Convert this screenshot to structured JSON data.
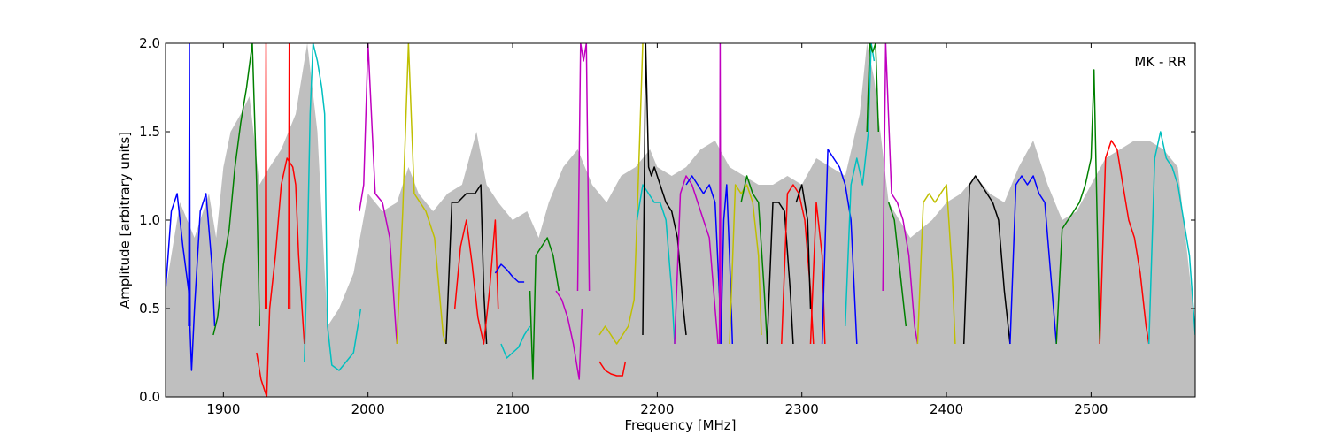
{
  "chart_data": {
    "type": "line",
    "title": "",
    "annotation": "MK - RR",
    "xlabel": "Frequency [MHz]",
    "ylabel": "Amplitude [arbitrary units]",
    "xlim": [
      1860,
      2572
    ],
    "ylim": [
      0.0,
      2.0
    ],
    "xticks": [
      1900,
      2000,
      2100,
      2200,
      2300,
      2400,
      2500
    ],
    "xtick_labels": [
      "1900",
      "2000",
      "2100",
      "2200",
      "2300",
      "2400",
      "2500"
    ],
    "yticks": [
      0.0,
      0.5,
      1.0,
      1.5,
      2.0
    ],
    "ytick_labels": [
      "0.0",
      "0.5",
      "1.0",
      "1.5",
      "2.0"
    ],
    "grid": false,
    "background": {
      "color": "#bfbfbf",
      "x": [
        1860,
        1870,
        1880,
        1890,
        1895,
        1900,
        1905,
        1912,
        1918,
        1925,
        1932,
        1940,
        1950,
        1958,
        1965,
        1972,
        1980,
        1990,
        2000,
        2010,
        2020,
        2028,
        2035,
        2045,
        2055,
        2065,
        2075,
        2082,
        2090,
        2100,
        2110,
        2118,
        2125,
        2135,
        2145,
        2155,
        2165,
        2175,
        2185,
        2195,
        2200,
        2210,
        2220,
        2230,
        2240,
        2250,
        2260,
        2270,
        2280,
        2290,
        2300,
        2310,
        2320,
        2330,
        2340,
        2345,
        2350,
        2360,
        2375,
        2390,
        2400,
        2410,
        2420,
        2430,
        2440,
        2450,
        2460,
        2470,
        2480,
        2490,
        2500,
        2510,
        2520,
        2530,
        2540,
        2550,
        2560,
        2572
      ],
      "y": [
        0.6,
        1.1,
        0.9,
        1.15,
        0.9,
        1.3,
        1.5,
        1.6,
        1.7,
        1.2,
        1.3,
        1.4,
        1.6,
        2.0,
        1.5,
        0.4,
        0.5,
        0.7,
        1.15,
        1.05,
        1.1,
        1.3,
        1.15,
        1.05,
        1.15,
        1.2,
        1.5,
        1.2,
        1.1,
        1.0,
        1.05,
        0.9,
        1.1,
        1.3,
        1.4,
        1.2,
        1.1,
        1.25,
        1.3,
        1.4,
        1.3,
        1.25,
        1.3,
        1.4,
        1.45,
        1.3,
        1.25,
        1.2,
        1.2,
        1.25,
        1.2,
        1.35,
        1.3,
        1.25,
        1.6,
        2.0,
        1.8,
        1.1,
        0.9,
        1.0,
        1.1,
        1.15,
        1.25,
        1.15,
        1.1,
        1.3,
        1.45,
        1.2,
        1.0,
        1.05,
        1.2,
        1.35,
        1.4,
        1.45,
        1.45,
        1.4,
        1.3,
        0.4
      ]
    },
    "series": [
      {
        "color": "#0000ff",
        "x": [
          1860,
          1864,
          1868,
          1872,
          1876,
          1878,
          1880,
          1884,
          1888,
          1892,
          1894
        ],
        "y": [
          0.6,
          1.05,
          1.15,
          0.85,
          0.6,
          0.15,
          0.5,
          1.05,
          1.15,
          0.75,
          0.4
        ]
      },
      {
        "color": "#0000ff",
        "x": [
          1876,
          1876.5,
          1877
        ],
        "y": [
          0.4,
          2.0,
          0.4
        ]
      },
      {
        "color": "#008000",
        "x": [
          1893,
          1896,
          1900,
          1904,
          1908,
          1912,
          1916,
          1920,
          1923,
          1925
        ],
        "y": [
          0.35,
          0.45,
          0.75,
          0.95,
          1.3,
          1.55,
          1.75,
          2.0,
          1.2,
          0.4
        ]
      },
      {
        "color": "#ff0000",
        "x": [
          1923,
          1926,
          1930,
          1932,
          1936,
          1940,
          1944,
          1948,
          1950,
          1952,
          1956
        ],
        "y": [
          0.25,
          0.1,
          0.0,
          0.5,
          0.8,
          1.2,
          1.35,
          1.3,
          1.2,
          0.8,
          0.3
        ]
      },
      {
        "color": "#ff0000",
        "x": [
          1929,
          1929.5,
          1930
        ],
        "y": [
          0.5,
          2.0,
          0.5
        ]
      },
      {
        "color": "#ff0000",
        "x": [
          1945,
          1945.5,
          1946
        ],
        "y": [
          0.5,
          2.0,
          0.5
        ]
      },
      {
        "color": "#00bfbf",
        "x": [
          1956,
          1958,
          1960,
          1962,
          1965,
          1968,
          1970,
          1972,
          1975,
          1980,
          1985,
          1990,
          1995
        ],
        "y": [
          0.2,
          0.8,
          1.6,
          2.0,
          1.9,
          1.75,
          1.6,
          0.4,
          0.18,
          0.15,
          0.2,
          0.25,
          0.5
        ]
      },
      {
        "color": "#bf00bf",
        "x": [
          1994,
          1997,
          2000,
          2005,
          2010,
          2015,
          2020
        ],
        "y": [
          1.05,
          1.2,
          2.0,
          1.15,
          1.1,
          0.9,
          0.3
        ]
      },
      {
        "color": "#bfbf00",
        "x": [
          2020,
          2024,
          2028,
          2032,
          2040,
          2046,
          2052,
          2054
        ],
        "y": [
          0.3,
          1.05,
          2.0,
          1.15,
          1.05,
          0.9,
          0.35,
          0.3
        ]
      },
      {
        "color": "#000000",
        "x": [
          2054,
          2058,
          2062,
          2068,
          2074,
          2078,
          2080,
          2082
        ],
        "y": [
          0.3,
          1.1,
          1.1,
          1.15,
          1.15,
          1.2,
          0.6,
          0.3
        ]
      },
      {
        "color": "#ff0000",
        "x": [
          2060,
          2064,
          2068,
          2072,
          2076,
          2080,
          2084,
          2088,
          2090
        ],
        "y": [
          0.5,
          0.85,
          1.0,
          0.75,
          0.45,
          0.3,
          0.6,
          1.0,
          0.5
        ]
      },
      {
        "color": "#0000ff",
        "x": [
          2088,
          2092,
          2096,
          2100,
          2104,
          2108
        ],
        "y": [
          0.7,
          0.75,
          0.72,
          0.68,
          0.65,
          0.65
        ]
      },
      {
        "color": "#00bfbf",
        "x": [
          2092,
          2096,
          2100,
          2104,
          2108,
          2112
        ],
        "y": [
          0.3,
          0.22,
          0.25,
          0.28,
          0.35,
          0.4
        ]
      },
      {
        "color": "#008000",
        "x": [
          2112,
          2114,
          2116,
          2120,
          2124,
          2128,
          2130,
          2132
        ],
        "y": [
          0.6,
          0.1,
          0.8,
          0.85,
          0.9,
          0.8,
          0.7,
          0.6
        ]
      },
      {
        "color": "#bf00bf",
        "x": [
          2130,
          2134,
          2138,
          2142,
          2146,
          2148
        ],
        "y": [
          0.6,
          0.55,
          0.45,
          0.3,
          0.1,
          0.5
        ]
      },
      {
        "color": "#bf00bf",
        "x": [
          2145,
          2147,
          2149,
          2151,
          2153
        ],
        "y": [
          0.6,
          2.0,
          1.9,
          2.0,
          0.6
        ]
      },
      {
        "color": "#ff0000",
        "x": [
          2160,
          2164,
          2168,
          2172,
          2176,
          2178
        ],
        "y": [
          0.2,
          0.15,
          0.13,
          0.12,
          0.12,
          0.2
        ]
      },
      {
        "color": "#bfbf00",
        "x": [
          2160,
          2164,
          2168,
          2172,
          2176,
          2180,
          2184,
          2186,
          2188,
          2190
        ],
        "y": [
          0.35,
          0.4,
          0.35,
          0.3,
          0.35,
          0.4,
          0.55,
          1.0,
          1.5,
          2.0
        ]
      },
      {
        "color": "#00bfbf",
        "x": [
          2186,
          2190,
          2194,
          2198,
          2202,
          2206,
          2210,
          2212
        ],
        "y": [
          1.0,
          1.2,
          1.15,
          1.1,
          1.1,
          1.0,
          0.6,
          0.3
        ]
      },
      {
        "color": "#000000",
        "x": [
          2190,
          2192,
          2194,
          2196,
          2198,
          2202,
          2206,
          2210,
          2214,
          2218,
          2220
        ],
        "y": [
          0.35,
          2.0,
          1.3,
          1.25,
          1.3,
          1.2,
          1.1,
          1.05,
          0.9,
          0.5,
          0.35
        ]
      },
      {
        "color": "#bf00bf",
        "x": [
          2212,
          2216,
          2220,
          2224,
          2228,
          2232,
          2236,
          2240,
          2242
        ],
        "y": [
          0.3,
          1.15,
          1.25,
          1.2,
          1.1,
          1.0,
          0.9,
          0.5,
          0.3
        ]
      },
      {
        "color": "#0000ff",
        "x": [
          2220,
          2224,
          2228,
          2232,
          2236,
          2240,
          2244
        ],
        "y": [
          1.2,
          1.25,
          1.2,
          1.15,
          1.2,
          1.1,
          0.4
        ]
      },
      {
        "color": "#bf00bf",
        "x": [
          2243,
          2243.5,
          2244
        ],
        "y": [
          0.3,
          2.0,
          0.3
        ]
      },
      {
        "color": "#0000ff",
        "x": [
          2244,
          2246,
          2248,
          2250,
          2252
        ],
        "y": [
          0.3,
          1.0,
          1.2,
          0.8,
          0.3
        ]
      },
      {
        "color": "#bfbf00",
        "x": [
          2250,
          2254,
          2258,
          2262,
          2266,
          2270,
          2272
        ],
        "y": [
          0.3,
          1.2,
          1.15,
          1.2,
          1.1,
          0.8,
          0.35
        ]
      },
      {
        "color": "#008000",
        "x": [
          2258,
          2262,
          2266,
          2270,
          2274,
          2276
        ],
        "y": [
          1.1,
          1.25,
          1.15,
          1.1,
          0.6,
          0.3
        ]
      },
      {
        "color": "#000000",
        "x": [
          2276,
          2280,
          2284,
          2288,
          2292,
          2294
        ],
        "y": [
          0.3,
          1.1,
          1.1,
          1.05,
          0.6,
          0.3
        ]
      },
      {
        "color": "#ff0000",
        "x": [
          2286,
          2290,
          2294,
          2298,
          2302,
          2306,
          2308
        ],
        "y": [
          0.3,
          1.15,
          1.2,
          1.15,
          1.0,
          0.6,
          0.3
        ]
      },
      {
        "color": "#000000",
        "x": [
          2296,
          2300,
          2304,
          2306
        ],
        "y": [
          1.1,
          1.2,
          1.0,
          0.5
        ]
      },
      {
        "color": "#ff0000",
        "x": [
          2306,
          2310,
          2314,
          2316
        ],
        "y": [
          0.3,
          1.1,
          0.8,
          0.3
        ]
      },
      {
        "color": "#0000ff",
        "x": [
          2314,
          2318,
          2322,
          2326,
          2330,
          2334,
          2338
        ],
        "y": [
          0.3,
          1.4,
          1.35,
          1.3,
          1.2,
          1.0,
          0.3
        ]
      },
      {
        "color": "#00bfbf",
        "x": [
          2330,
          2334,
          2338,
          2342,
          2346,
          2348,
          2350
        ],
        "y": [
          0.4,
          1.2,
          1.35,
          1.2,
          1.5,
          2.0,
          1.9
        ]
      },
      {
        "color": "#008000",
        "x": [
          2345,
          2347,
          2349,
          2351,
          2353
        ],
        "y": [
          1.5,
          2.0,
          1.95,
          2.0,
          1.5
        ]
      },
      {
        "color": "#bf00bf",
        "x": [
          2356,
          2358,
          2362,
          2366,
          2370,
          2374,
          2378,
          2380
        ],
        "y": [
          0.6,
          2.0,
          1.15,
          1.1,
          1.0,
          0.8,
          0.4,
          0.3
        ]
      },
      {
        "color": "#008000",
        "x": [
          2360,
          2364,
          2368,
          2372
        ],
        "y": [
          1.1,
          1.0,
          0.7,
          0.4
        ]
      },
      {
        "color": "#bfbf00",
        "x": [
          2380,
          2384,
          2388,
          2392,
          2396,
          2400,
          2404,
          2406
        ],
        "y": [
          0.3,
          1.1,
          1.15,
          1.1,
          1.15,
          1.2,
          0.7,
          0.3
        ]
      },
      {
        "color": "#000000",
        "x": [
          2412,
          2416,
          2420,
          2424,
          2428,
          2432,
          2436,
          2440,
          2444
        ],
        "y": [
          0.3,
          1.2,
          1.25,
          1.2,
          1.15,
          1.1,
          1.0,
          0.6,
          0.3
        ]
      },
      {
        "color": "#0000ff",
        "x": [
          2444,
          2448,
          2452,
          2456,
          2460,
          2464,
          2468,
          2472,
          2476
        ],
        "y": [
          0.3,
          1.2,
          1.25,
          1.2,
          1.25,
          1.15,
          1.1,
          0.7,
          0.3
        ]
      },
      {
        "color": "#008000",
        "x": [
          2476,
          2480,
          2484,
          2488,
          2492,
          2496,
          2500,
          2502,
          2506
        ],
        "y": [
          0.3,
          0.95,
          1.0,
          1.05,
          1.1,
          1.2,
          1.35,
          1.85,
          0.3
        ]
      },
      {
        "color": "#ff0000",
        "x": [
          2506,
          2510,
          2514,
          2518,
          2522,
          2526,
          2530,
          2534,
          2538,
          2540
        ],
        "y": [
          0.3,
          1.35,
          1.45,
          1.4,
          1.2,
          1.0,
          0.9,
          0.7,
          0.4,
          0.3
        ]
      },
      {
        "color": "#00bfbf",
        "x": [
          2540,
          2544,
          2548,
          2552,
          2556,
          2560,
          2564,
          2568,
          2572
        ],
        "y": [
          0.3,
          1.35,
          1.5,
          1.35,
          1.3,
          1.2,
          1.0,
          0.8,
          0.35
        ]
      }
    ]
  }
}
